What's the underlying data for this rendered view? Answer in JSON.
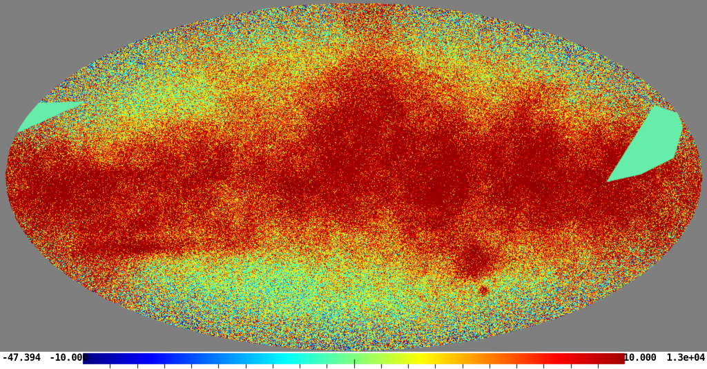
{
  "chart_data": {
    "type": "heatmap",
    "projection": "mollweide",
    "description": "All-sky map in Mollweide projection, jet colormap, saturated dark-red galactic plane band, noisy high-latitude speckle, two flat mint-green unobserved wedge regions at left and right edges",
    "colormap": "jet",
    "color_range": [
      -10,
      10
    ],
    "data_min": -47.394,
    "data_max": 13000,
    "colorbar": {
      "labels_left": [
        "-47.394",
        "-10.000"
      ],
      "labels_right": [
        "10.000",
        "1.3e+04"
      ],
      "tick_count": 19,
      "center_tick_index": 10
    }
  },
  "colors": {
    "background": "#7f7f7f",
    "footer_background": "#ffffff",
    "saturated_red": "#a00000",
    "colorbar_start": "#000080",
    "wedge_green": "#66edaa",
    "tick_color": "#000000",
    "label_text": "#000000"
  }
}
